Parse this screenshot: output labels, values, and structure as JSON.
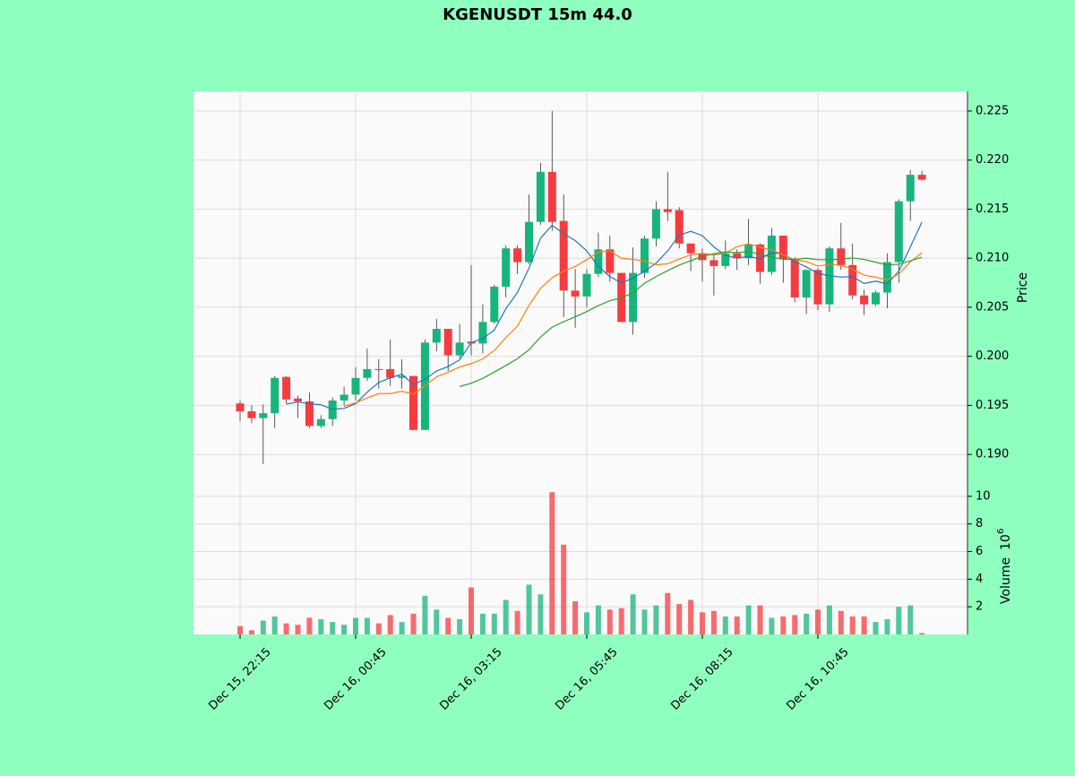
{
  "chart_data": {
    "type": "candlestick",
    "title": "KGENUSDT 15m 44.0",
    "ylabel": "Price",
    "categories": [
      "Dec 15, 22:15",
      null,
      null,
      null,
      null,
      null,
      null,
      null,
      null,
      null,
      "Dec 16, 00:45",
      null,
      null,
      null,
      null,
      null,
      null,
      null,
      null,
      null,
      "Dec 16, 03:15",
      null,
      null,
      null,
      null,
      null,
      null,
      null,
      null,
      null,
      "Dec 16, 05:45",
      null,
      null,
      null,
      null,
      null,
      null,
      null,
      null,
      null,
      "Dec 16, 08:15",
      null,
      null,
      null,
      null,
      null,
      null,
      null,
      null,
      null,
      "Dec 16, 10:45",
      null,
      null,
      null,
      null,
      null,
      null,
      null,
      null,
      null
    ],
    "open": [
      0.1952,
      0.1944,
      0.1937,
      0.1942,
      0.1979,
      0.1957,
      0.1954,
      0.1929,
      0.1936,
      0.1955,
      0.1961,
      0.1978,
      0.1987,
      0.1987,
      0.1978,
      0.198,
      0.1925,
      0.2014,
      0.2028,
      0.2001,
      0.2015,
      0.2013,
      0.2035,
      0.2071,
      0.211,
      0.2096,
      0.2137,
      0.2188,
      0.2138,
      0.2067,
      0.2061,
      0.2084,
      0.2109,
      0.2085,
      0.2035,
      0.2085,
      0.212,
      0.215,
      0.2149,
      0.2115,
      0.2105,
      0.2098,
      0.2092,
      0.2105,
      0.21,
      0.2114,
      0.2086,
      0.2123,
      0.2099,
      0.206,
      0.2088,
      0.2053,
      0.211,
      0.2093,
      0.2062,
      0.2053,
      0.2065,
      0.2096,
      0.2158,
      0.2185
    ],
    "high": [
      0.1955,
      0.195,
      0.1951,
      0.198,
      0.198,
      0.196,
      0.1963,
      0.194,
      0.1958,
      0.1969,
      0.1989,
      0.2008,
      0.1997,
      0.2017,
      0.1997,
      0.198,
      0.2017,
      0.2038,
      0.2028,
      0.2033,
      0.2093,
      0.2053,
      0.2073,
      0.2113,
      0.2113,
      0.2165,
      0.2197,
      0.225,
      0.2165,
      0.2089,
      0.2089,
      0.2126,
      0.2123,
      0.2085,
      0.2111,
      0.2123,
      0.2158,
      0.2188,
      0.2152,
      0.2115,
      0.211,
      0.2103,
      0.2118,
      0.2109,
      0.214,
      0.2115,
      0.2131,
      0.2123,
      0.2101,
      0.2089,
      0.209,
      0.2112,
      0.2136,
      0.2115,
      0.2068,
      0.2067,
      0.2105,
      0.216,
      0.219,
      0.2189
    ],
    "low": [
      0.1934,
      0.1932,
      0.189,
      0.1927,
      0.1952,
      0.1937,
      0.1927,
      0.1927,
      0.1929,
      0.195,
      0.1955,
      0.1975,
      0.1967,
      0.197,
      0.1967,
      0.1925,
      0.1925,
      0.2005,
      0.1985,
      0.1998,
      0.2001,
      0.2003,
      0.2033,
      0.206,
      0.2084,
      0.2094,
      0.2134,
      0.2128,
      0.204,
      0.2029,
      0.205,
      0.2081,
      0.2076,
      0.2035,
      0.2022,
      0.208,
      0.2112,
      0.2138,
      0.211,
      0.2087,
      0.2076,
      0.2062,
      0.2089,
      0.2088,
      0.2093,
      0.2074,
      0.2083,
      0.2075,
      0.2055,
      0.2043,
      0.2047,
      0.2045,
      0.2088,
      0.2058,
      0.2042,
      0.2051,
      0.2049,
      0.2075,
      0.2138,
      0.2179
    ],
    "close": [
      0.1944,
      0.1937,
      0.1942,
      0.1978,
      0.1956,
      0.1954,
      0.1929,
      0.1936,
      0.1955,
      0.1961,
      0.1978,
      0.1987,
      0.1986,
      0.1978,
      0.198,
      0.1925,
      0.2014,
      0.2028,
      0.2001,
      0.2014,
      0.2013,
      0.2035,
      0.2071,
      0.211,
      0.2096,
      0.2137,
      0.2188,
      0.2137,
      0.2067,
      0.2061,
      0.2084,
      0.2109,
      0.2085,
      0.2035,
      0.2085,
      0.212,
      0.215,
      0.2147,
      0.2115,
      0.2105,
      0.2098,
      0.2092,
      0.2105,
      0.21,
      0.2114,
      0.2086,
      0.2123,
      0.2099,
      0.206,
      0.2088,
      0.2053,
      0.211,
      0.2093,
      0.2062,
      0.2053,
      0.2065,
      0.2096,
      0.2158,
      0.2185,
      0.218
    ],
    "up_color": "#17b57b",
    "down_color": "#f63b40",
    "ylim": [
      0.187,
      0.227
    ],
    "yticks": [
      {
        "value": 0.19,
        "label": "0.190"
      },
      0.195,
      {
        "value": 0.2,
        "label": "0.200"
      },
      0.205,
      {
        "value": 0.21,
        "label": "0.210"
      },
      0.215,
      {
        "value": 0.22,
        "label": "0.220"
      },
      0.225
    ],
    "grid": true,
    "lines": [
      {
        "color": "#1f77b4",
        "values": [
          null,
          null,
          null,
          null,
          0.19514,
          0.19534,
          0.19518,
          0.19506,
          0.1946,
          0.1947,
          0.19518,
          0.19634,
          0.19734,
          0.1978,
          0.19818,
          0.19712,
          0.19766,
          0.1985,
          0.19896,
          0.19964,
          0.2014,
          0.20182,
          0.20268,
          0.20486,
          0.2065,
          0.20898,
          0.21204,
          0.21336,
          0.2125,
          0.2118,
          0.21074,
          0.20916,
          0.20812,
          0.20748,
          0.20796,
          0.20868,
          0.2095,
          0.21074,
          0.21234,
          0.21274,
          0.2123,
          0.21114,
          0.2103,
          0.21,
          0.21018,
          0.20994,
          0.21056,
          0.21044,
          0.20964,
          0.20912,
          0.20846,
          0.2082,
          0.20808,
          0.20812,
          0.20742,
          0.20766,
          0.20738,
          0.20868,
          0.21114,
          0.21368
        ]
      },
      {
        "color": "#ff7f0e",
        "values": [
          null,
          null,
          null,
          null,
          null,
          null,
          null,
          null,
          null,
          0.19492,
          0.19526,
          0.19576,
          0.1962,
          0.1962,
          0.19644,
          0.19615,
          0.197,
          0.19792,
          0.19838,
          0.19891,
          0.19926,
          0.19974,
          0.20059,
          0.20191,
          0.20307,
          0.20519,
          0.20693,
          0.20802,
          0.20868,
          0.20915,
          0.20986,
          0.2106,
          0.21074,
          0.20999,
          0.20988,
          0.20971,
          0.20933,
          0.20943,
          0.20991,
          0.21035,
          0.21049,
          0.21032,
          0.21052,
          0.21117,
          0.21146,
          0.21112,
          0.21085,
          0.21037,
          0.20982,
          0.20965,
          0.2092,
          0.20938,
          0.20926,
          0.20888,
          0.20827,
          0.20806,
          0.20779,
          0.20838,
          0.20963,
          0.21055
        ]
      },
      {
        "color": "#2ca02c",
        "values": [
          null,
          null,
          null,
          null,
          null,
          null,
          null,
          null,
          null,
          null,
          null,
          null,
          null,
          null,
          null,
          null,
          null,
          null,
          null,
          0.19692,
          0.19726,
          0.19775,
          0.1984,
          0.19906,
          0.19976,
          0.20067,
          0.20197,
          0.20297,
          0.20353,
          0.20403,
          0.20456,
          0.20517,
          0.20567,
          0.20595,
          0.20648,
          0.20745,
          0.20813,
          0.20873,
          0.2093,
          0.20975,
          0.21018,
          0.21046,
          0.21063,
          0.21058,
          0.21067,
          0.21042,
          0.21009,
          0.2099,
          0.20987,
          0.21,
          0.20985,
          0.20985,
          0.20989,
          0.21003,
          0.20987,
          0.20959,
          0.20932,
          0.20938,
          0.20973,
          0.2101
        ]
      }
    ],
    "volume": {
      "label": "Volume",
      "scale": {
        "base": "10",
        "exponent": "6"
      },
      "values": [
        0.6,
        0.3,
        1.0,
        1.3,
        0.8,
        0.7,
        1.2,
        1.1,
        0.9,
        0.7,
        1.2,
        1.2,
        0.8,
        1.4,
        0.9,
        1.5,
        2.8,
        1.8,
        1.2,
        1.1,
        3.4,
        1.5,
        1.5,
        2.5,
        1.7,
        3.6,
        2.9,
        10.3,
        6.5,
        2.4,
        1.6,
        2.1,
        1.8,
        1.9,
        2.9,
        1.8,
        2.1,
        3.0,
        2.2,
        2.5,
        1.6,
        1.7,
        1.3,
        1.3,
        2.1,
        2.1,
        1.2,
        1.3,
        1.4,
        1.5,
        1.8,
        2.1,
        1.7,
        1.3,
        1.3,
        0.9,
        1.1,
        2.0,
        2.1,
        0.1
      ],
      "ylim": [
        0,
        10.9
      ],
      "yticks": [
        2,
        4,
        6,
        8,
        10
      ]
    }
  }
}
